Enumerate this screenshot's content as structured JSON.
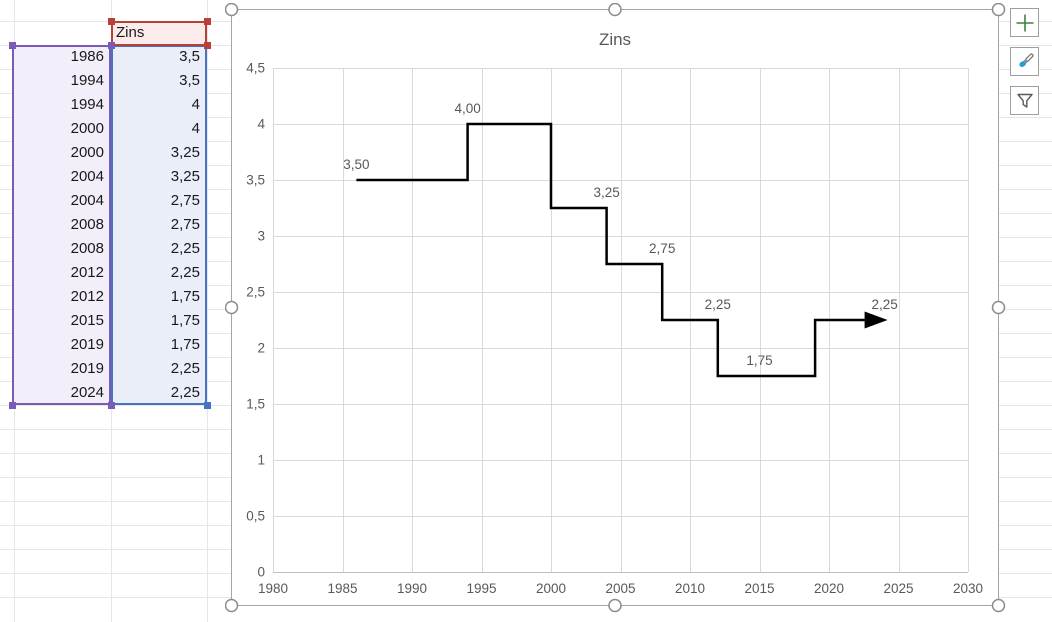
{
  "spreadsheet": {
    "header": "Zins",
    "rows": [
      {
        "year": "1986",
        "value": "3,5"
      },
      {
        "year": "1994",
        "value": "3,5"
      },
      {
        "year": "1994",
        "value": "4"
      },
      {
        "year": "2000",
        "value": "4"
      },
      {
        "year": "2000",
        "value": "3,25"
      },
      {
        "year": "2004",
        "value": "3,25"
      },
      {
        "year": "2004",
        "value": "2,75"
      },
      {
        "year": "2008",
        "value": "2,75"
      },
      {
        "year": "2008",
        "value": "2,25"
      },
      {
        "year": "2012",
        "value": "2,25"
      },
      {
        "year": "2012",
        "value": "1,75"
      },
      {
        "year": "2015",
        "value": "1,75"
      },
      {
        "year": "2019",
        "value": "1,75"
      },
      {
        "year": "2019",
        "value": "2,25"
      },
      {
        "year": "2024",
        "value": "2,25"
      }
    ]
  },
  "chart_data": {
    "type": "line",
    "subtype": "step",
    "title": "Zins",
    "series": [
      {
        "name": "Zins",
        "points": [
          [
            1986,
            3.5
          ],
          [
            1994,
            3.5
          ],
          [
            1994,
            4
          ],
          [
            2000,
            4
          ],
          [
            2000,
            3.25
          ],
          [
            2004,
            3.25
          ],
          [
            2004,
            2.75
          ],
          [
            2008,
            2.75
          ],
          [
            2008,
            2.25
          ],
          [
            2012,
            2.25
          ],
          [
            2012,
            1.75
          ],
          [
            2015,
            1.75
          ],
          [
            2019,
            1.75
          ],
          [
            2019,
            2.25
          ],
          [
            2024,
            2.25
          ]
        ]
      }
    ],
    "xlim": [
      1980,
      2030
    ],
    "ylim": [
      0,
      4.5
    ],
    "x_tick_step": 5,
    "y_tick_step": 0.5,
    "x_tick_labels": [
      "1980",
      "1985",
      "1990",
      "1995",
      "2000",
      "2005",
      "2010",
      "2015",
      "2020",
      "2025",
      "2030"
    ],
    "y_tick_labels": [
      "0",
      "0,5",
      "1",
      "1,5",
      "2",
      "2,5",
      "3",
      "3,5",
      "4",
      "4,5"
    ],
    "grid": true,
    "legend": false,
    "end_arrow": true,
    "data_labels": [
      {
        "x": 1986,
        "y": 3.5,
        "text": "3,50"
      },
      {
        "x": 1994,
        "y": 4,
        "text": "4,00"
      },
      {
        "x": 2004,
        "y": 3.25,
        "text": "3,25"
      },
      {
        "x": 2008,
        "y": 2.75,
        "text": "2,75"
      },
      {
        "x": 2012,
        "y": 2.25,
        "text": "2,25"
      },
      {
        "x": 2015,
        "y": 1.75,
        "text": "1,75"
      },
      {
        "x": 2024,
        "y": 2.25,
        "text": "2,25"
      }
    ]
  },
  "chart_tools": [
    {
      "name": "chart-elements-button",
      "icon": "plus-icon"
    },
    {
      "name": "chart-styles-button",
      "icon": "paintbrush-icon"
    },
    {
      "name": "chart-filters-button",
      "icon": "funnel-icon"
    }
  ],
  "colors": {
    "header_border": "#B94038",
    "header_fill": "#FBEBEA",
    "years_border": "#7B5BB5",
    "years_fill": "#F2EFFA",
    "values_border": "#4472C4",
    "values_fill": "#E9EEF9",
    "chart_frame": "#A6A6A6",
    "chart_grid": "#D9D9D9",
    "chart_axis": "#BFBFBF",
    "chart_text": "#595959",
    "series_line": "#000000",
    "sheet_grid": "#E6E6E6",
    "tool_plus_green": "#3F8040",
    "tool_brush_blue": "#2E9BD8"
  }
}
